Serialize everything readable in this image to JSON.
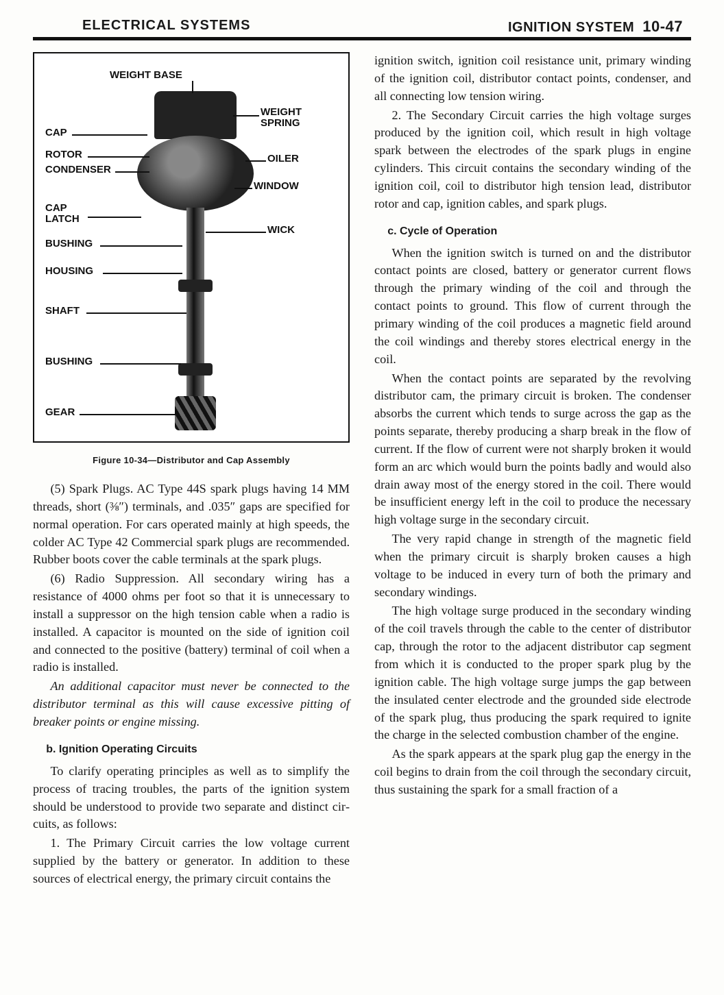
{
  "header": {
    "left": "ELECTRICAL SYSTEMS",
    "right_title": "IGNITION SYSTEM",
    "page": "10-47"
  },
  "figure": {
    "caption": "Figure 10-34—Distributor and Cap Assembly",
    "labels": {
      "weight_base": "WEIGHT  BASE",
      "weight_spring": "WEIGHT\nSPRING",
      "cap": "CAP",
      "rotor": "ROTOR",
      "condenser": "CONDENSER",
      "oiler": "OILER",
      "window": "WINDOW",
      "cap_latch": "CAP\nLATCH",
      "wick": "WICK",
      "bushing": "BUSHING",
      "housing": "HOUSING",
      "shaft": "SHAFT",
      "gear": "GEAR"
    }
  },
  "left": {
    "p1": "(5) Spark Plugs. AC Type 44S spark plugs having 14 MM threads, short (⅜″) terminals, and .035″ gaps are specified for normal opera­tion. For cars operated mainly at high speeds, the colder AC Type 42 Commercial spark plugs are recommended. Rubber boots cover the cable terminals at the spark plugs.",
    "p2": "(6) Radio Suppression. All secondary wiring has a resistance of 4000 ohms per foot so that it is un­necessary to install a suppressor on the high tension cable when a radio is installed. A capacitor is mounted on the side of ignition coil and connected to the positive (battery) terminal of coil when a radio is installed.",
    "p3": "An additional capacitor must never be con­nected to the distributor terminal as this will cause excessive pitting of breaker points or engine missing.",
    "subhead_b": "b. Ignition Operating Circuits",
    "p4": "To clarify operating principles as well as to simplify the process of tracing troubles, the parts of the ignition system should be under­stood to provide two separate and distinct cir­cuits, as follows:",
    "p5": "1. The Primary Circuit carries the low voltage current supplied by the battery or gen­erator. In addition to these sources of elec­trical energy, the primary circuit contains the"
  },
  "right": {
    "p1": "ignition switch, ignition coil resistance unit, primary winding of the ignition coil, distribu­tor contact points, condenser, and all connect­ing low tension wiring.",
    "p2": "2. The Secondary Circuit carries the high voltage surges produced by the ignition coil, which result in high voltage spark between the electrodes of the spark plugs in engine cylin­ders. This circuit contains the secondary wind­ing of the ignition coil, coil to distributor high tension lead, distributor rotor and cap, ignition cables, and spark plugs.",
    "subhead_c": "c. Cycle of Operation",
    "p3": "When the ignition switch is turned on and the distributor contact points are closed, bat­tery or generator current flows through the primary winding of the coil and through the contact points to ground. This flow of current through the primary winding of the coil pro­duces a magnetic field around the coil windings and thereby stores electrical energy in the coil.",
    "p4": "When the contact points are separated by the revolving distributor cam, the primary cir­cuit is broken. The condenser absorbs the cur­rent which tends to surge across the gap as the points separate, thereby producing a sharp break in the flow of current. If the flow of cur­rent were not sharply broken it would form an arc which would burn the points badly and would also drain away most of the energy stored in the coil. There would be insufficient energy left in the coil to produce the necessary high voltage surge in the secondary circuit.",
    "p5": "The very rapid change in strength of the magnetic field when the primary circuit is sharply broken causes a high voltage to be in­duced in every turn of both the primary and secondary windings.",
    "p6": "The high voltage surge produced in the secondary winding of the coil travels through the cable to the center of distributor cap, through the rotor to the adjacent distributor cap segment from which it is conducted to the proper spark plug by the ignition cable. The high voltage surge jumps the gap between the insulated center electrode and the grounded side electrode of the spark plug, thus producing the spark required to ignite the charge in the selected combustion chamber of the engine.",
    "p7": "As the spark appears at the spark plug gap the energy in the coil begins to drain from the coil through the secondary circuit, thus sus­taining the spark for a small fraction of a"
  }
}
